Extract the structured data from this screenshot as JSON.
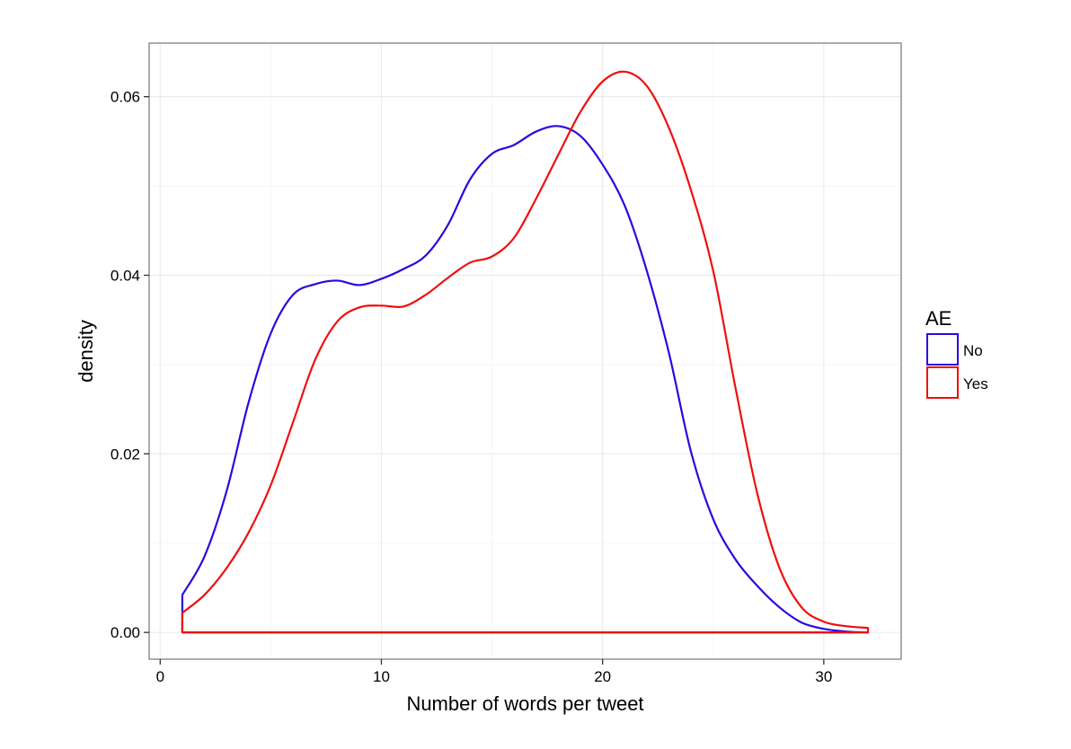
{
  "chart_data": {
    "type": "density",
    "title": "",
    "xlabel": "Number of words per tweet",
    "ylabel": "density",
    "xlim": [
      -0.5,
      33.5
    ],
    "ylim": [
      -0.003,
      0.066
    ],
    "x_ticks": [
      {
        "value": 0,
        "label": "0"
      },
      {
        "value": 10,
        "label": "10"
      },
      {
        "value": 20,
        "label": "20"
      },
      {
        "value": 30,
        "label": "30"
      }
    ],
    "y_ticks": [
      {
        "value": 0,
        "label": "0.00"
      },
      {
        "value": 0.02,
        "label": "0.02"
      },
      {
        "value": 0.04,
        "label": "0.04"
      },
      {
        "value": 0.06,
        "label": "0.06"
      }
    ],
    "grid": true,
    "legend": {
      "title": "AE",
      "position": "right"
    },
    "series": [
      {
        "name": "No",
        "color": "#2b08e0",
        "x": [
          1,
          2,
          3,
          4,
          5,
          6,
          7,
          8,
          9,
          10,
          11,
          12,
          13,
          14,
          15,
          16,
          17,
          18,
          19,
          20,
          21,
          22,
          23,
          24,
          25,
          26,
          27,
          28,
          29,
          30,
          31,
          32
        ],
        "y": [
          0.0042,
          0.0085,
          0.0158,
          0.0258,
          0.0335,
          0.0378,
          0.039,
          0.0394,
          0.0389,
          0.0396,
          0.0407,
          0.0422,
          0.0456,
          0.0507,
          0.0536,
          0.0546,
          0.0561,
          0.0567,
          0.0556,
          0.0524,
          0.0478,
          0.0405,
          0.0313,
          0.0202,
          0.0127,
          0.0082,
          0.0052,
          0.0028,
          0.0011,
          0.0004,
          0.0001,
          0.0
        ]
      },
      {
        "name": "Yes",
        "color": "#f10e0e",
        "x": [
          1,
          2,
          3,
          4,
          5,
          6,
          7,
          8,
          9,
          10,
          11,
          12,
          13,
          14,
          15,
          16,
          17,
          18,
          19,
          20,
          21,
          22,
          23,
          24,
          25,
          26,
          27,
          28,
          29,
          30,
          31,
          32
        ],
        "y": [
          0.0022,
          0.0042,
          0.0072,
          0.0112,
          0.0165,
          0.0235,
          0.0305,
          0.0348,
          0.0364,
          0.0366,
          0.0365,
          0.0378,
          0.0397,
          0.0414,
          0.0421,
          0.0442,
          0.0486,
          0.0535,
          0.0583,
          0.0617,
          0.0628,
          0.0612,
          0.0565,
          0.0495,
          0.0405,
          0.0275,
          0.0155,
          0.0072,
          0.0028,
          0.0012,
          0.0007,
          0.0005
        ]
      }
    ]
  }
}
